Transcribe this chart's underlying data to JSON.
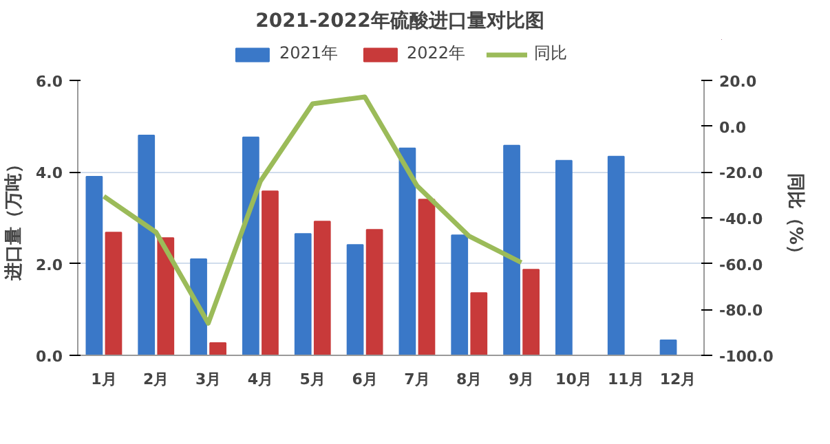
{
  "chart_data": {
    "type": "bar",
    "title": "2021-2022年硫酸进口量对比图",
    "ylabel": "进口量（万吨）",
    "y2label": "同比（%）",
    "categories": [
      "1月",
      "2月",
      "3月",
      "4月",
      "5月",
      "6月",
      "7月",
      "8月",
      "9月",
      "10月",
      "11月",
      "12月"
    ],
    "series": [
      {
        "name": "2021年",
        "color": "#3a78c8",
        "values": [
          3.9,
          4.8,
          2.1,
          4.76,
          2.65,
          2.41,
          4.52,
          2.62,
          4.58,
          4.25,
          4.34,
          0.33
        ]
      },
      {
        "name": "2022年",
        "color": "#c83a3a",
        "values": [
          2.68,
          2.56,
          0.27,
          3.58,
          2.92,
          2.74,
          3.4,
          1.36,
          1.87,
          null,
          null,
          null
        ]
      },
      {
        "name": "同比",
        "type": "line",
        "axis": "y2",
        "color": "#9bbb59",
        "values": [
          -30.6,
          -46.3,
          -86,
          -24,
          9.8,
          12.8,
          -26,
          -48,
          -59.5,
          null,
          null,
          null
        ]
      }
    ],
    "ylim": [
      0,
      6
    ],
    "yticks": [
      {
        "value": 0,
        "label": "0.0"
      },
      {
        "value": 2,
        "label": "2.0"
      },
      {
        "value": 4,
        "label": "4.0"
      },
      {
        "value": 6,
        "label": "6.0"
      }
    ],
    "y2lim": [
      -100,
      20
    ],
    "y2ticks": [
      {
        "value": -100,
        "label": "-100.0"
      },
      {
        "value": -80,
        "label": "-80.0"
      },
      {
        "value": -60,
        "label": "-60.0"
      },
      {
        "value": -40,
        "label": "-40.0"
      },
      {
        "value": -20,
        "label": "-20.0"
      },
      {
        "value": 0,
        "label": "0.0"
      },
      {
        "value": 20,
        "label": "20.0"
      }
    ],
    "grid": "y",
    "legend": "top",
    "marker": "none"
  }
}
